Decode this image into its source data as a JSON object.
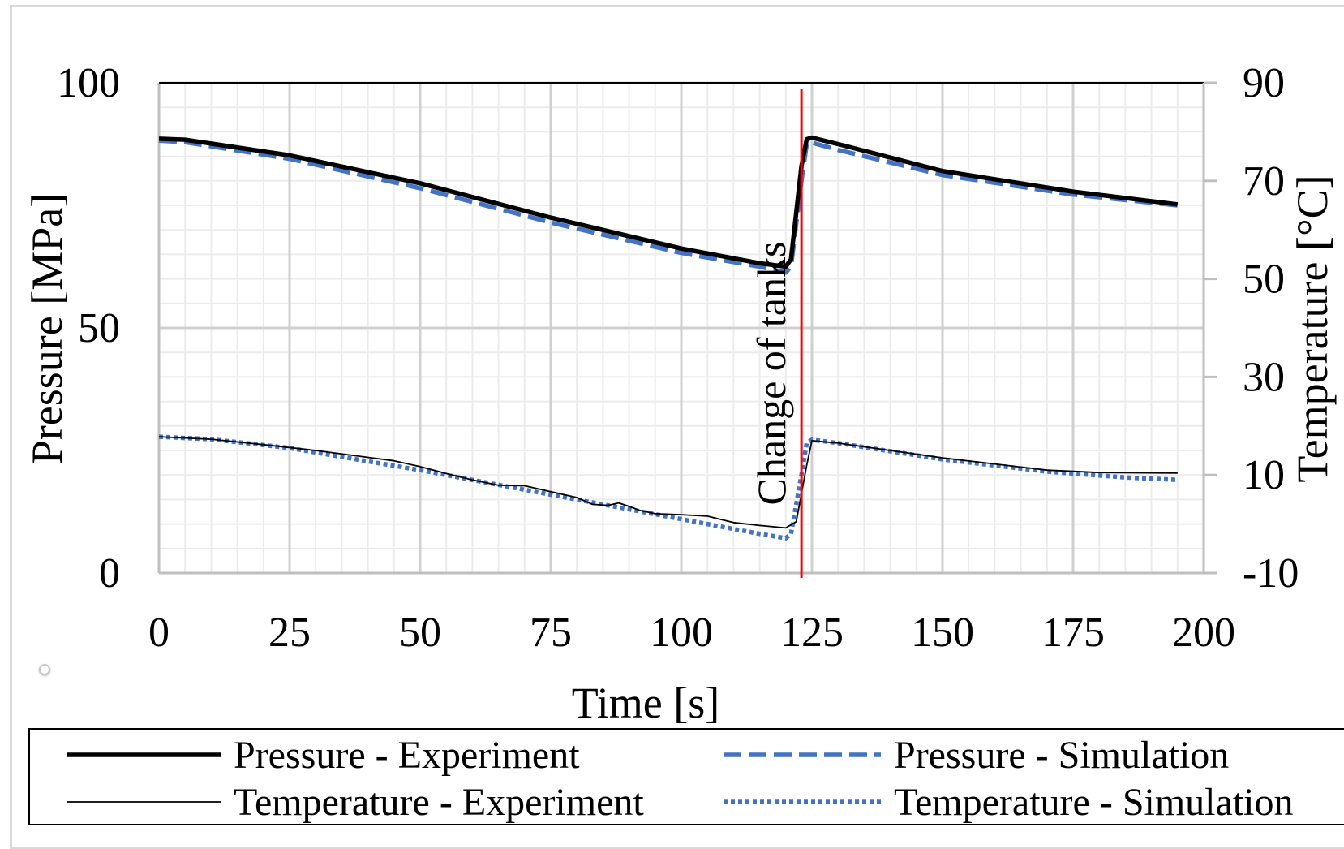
{
  "chart_data": {
    "type": "line",
    "title": "",
    "xlabel": "Time [s]",
    "ylabel": "Pressure [MPa]",
    "y2label": "Temperature [°C]",
    "xlim": [
      0,
      200
    ],
    "ylim": [
      0,
      100
    ],
    "y2lim": [
      -10,
      90
    ],
    "x_ticks": [
      "0",
      "25",
      "50",
      "75",
      "100",
      "125",
      "150",
      "175",
      "200"
    ],
    "y_ticks": [
      "0",
      "50",
      "100"
    ],
    "y2_ticks": [
      "-10",
      "10",
      "30",
      "50",
      "70",
      "90"
    ],
    "grid": true,
    "legend_position": "bottom",
    "annotation": {
      "text": "Change of tanks",
      "x": 123
    },
    "series": [
      {
        "name": "Pressure - Experiment",
        "axis": "left",
        "style": "solid-thick",
        "color": "#000000",
        "x": [
          0,
          5,
          25,
          50,
          75,
          100,
          115,
          120,
          121,
          123,
          124,
          125,
          130,
          150,
          175,
          195
        ],
        "y": [
          88.6,
          88.4,
          85.2,
          79.5,
          72.5,
          66.2,
          63.2,
          62.5,
          64,
          83,
          88.5,
          88.8,
          87.5,
          82.0,
          77.8,
          75.2
        ]
      },
      {
        "name": "Pressure - Simulation",
        "axis": "left",
        "style": "dashed",
        "color": "#4472C4",
        "x": [
          0,
          5,
          25,
          50,
          75,
          100,
          115,
          120,
          121,
          123,
          124,
          125,
          130,
          150,
          175,
          195
        ],
        "y": [
          88.2,
          87.9,
          84.5,
          78.5,
          71.5,
          65.3,
          62.5,
          61.3,
          62.5,
          80,
          87.5,
          87.8,
          86.3,
          81.2,
          77.2,
          75.0
        ]
      },
      {
        "name": "Temperature - Experiment",
        "axis": "right",
        "style": "solid-thin",
        "color": "#000000",
        "x": [
          0,
          10,
          20,
          30,
          40,
          45,
          50,
          55,
          60,
          65,
          70,
          75,
          80,
          83,
          86,
          88,
          90,
          92,
          95,
          100,
          105,
          110,
          115,
          120,
          122,
          124,
          125,
          130,
          150,
          170,
          180,
          195
        ],
        "y": [
          17.8,
          17.3,
          16.2,
          15.0,
          13.6,
          12.9,
          11.7,
          10.3,
          9.0,
          7.9,
          7.8,
          6.6,
          5.4,
          4.0,
          3.8,
          4.3,
          3.6,
          2.8,
          2.1,
          1.9,
          1.6,
          0.3,
          -0.3,
          -0.8,
          0.5,
          12,
          17.0,
          16.5,
          13.5,
          11.0,
          10.5,
          10.4
        ]
      },
      {
        "name": "Temperature - Simulation",
        "axis": "right",
        "style": "dotted",
        "color": "#4472C4",
        "x": [
          0,
          10,
          25,
          50,
          75,
          100,
          115,
          120,
          121,
          123,
          124,
          125,
          130,
          150,
          170,
          185,
          195
        ],
        "y": [
          17.8,
          17.3,
          15.5,
          11.0,
          6.0,
          1.0,
          -2.0,
          -2.9,
          -2.0,
          10,
          16.5,
          17.2,
          16.5,
          13.2,
          10.7,
          9.5,
          9.0
        ]
      }
    ]
  }
}
